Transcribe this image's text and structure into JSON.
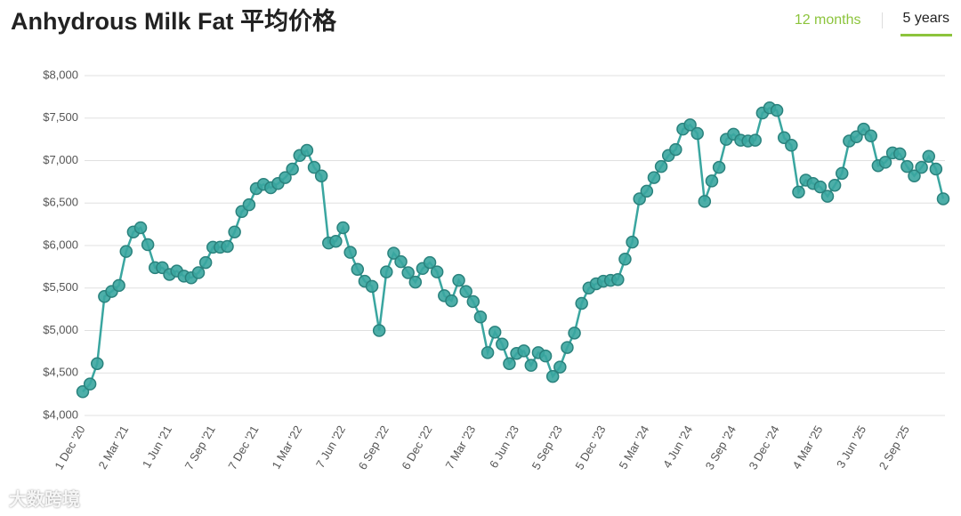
{
  "header": {
    "title": "Anhydrous Milk Fat 平均价格",
    "tabs": [
      "12 months",
      "5 years"
    ]
  },
  "watermark": "大数跨境",
  "chart_data": {
    "type": "line",
    "categories": [
      "1 Dec '20",
      null,
      null,
      null,
      null,
      null,
      "2 Mar '21",
      null,
      null,
      null,
      null,
      null,
      "1 Jun '21",
      null,
      null,
      null,
      null,
      null,
      "7 Sep '21",
      null,
      null,
      null,
      null,
      null,
      "7 Dec '21",
      null,
      null,
      null,
      null,
      null,
      "1 Mar '22",
      null,
      null,
      null,
      null,
      null,
      "7 Jun '22",
      null,
      null,
      null,
      null,
      null,
      "6 Sep '22",
      null,
      null,
      null,
      null,
      null,
      "6 Dec '22",
      null,
      null,
      null,
      null,
      null,
      "7 Mar '23",
      null,
      null,
      null,
      null,
      null,
      "6 Jun '23",
      null,
      null,
      null,
      null,
      null,
      "5 Sep '23",
      null,
      null,
      null,
      null,
      null,
      "5 Dec '23",
      null,
      null,
      null,
      null,
      null,
      "5 Mar '24",
      null,
      null,
      null,
      null,
      null,
      "4 Jun '24",
      null,
      null,
      null,
      null,
      null,
      "3 Sep '24",
      null,
      null,
      null,
      null,
      null,
      "3 Dec '24",
      null,
      null,
      null,
      null,
      null,
      "4 Mar '25",
      null,
      null,
      null,
      null,
      null,
      "3 Jun '25",
      null,
      null,
      null,
      null,
      null,
      "2 Sep '25",
      null,
      null,
      null,
      null,
      null
    ],
    "series": [
      {
        "name": "Anhydrous Milk Fat",
        "color": "#3aa6a0",
        "values": [
          4280,
          4370,
          4610,
          5400,
          5460,
          5530,
          5930,
          6160,
          6210,
          6010,
          5740,
          5740,
          5660,
          5700,
          5640,
          5620,
          5680,
          5800,
          5980,
          5980,
          5990,
          6160,
          6400,
          6480,
          6670,
          6720,
          6680,
          6730,
          6800,
          6900,
          7060,
          7120,
          6920,
          6820,
          6030,
          6050,
          6210,
          5920,
          5720,
          5580,
          5520,
          5000,
          5690,
          5910,
          5810,
          5680,
          5570,
          5730,
          5800,
          5690,
          5410,
          5350,
          5590,
          5460,
          5340,
          5160,
          4740,
          4980,
          4840,
          4610,
          4730,
          4760,
          4590,
          4740,
          4700,
          4460,
          4570,
          4800,
          4970,
          5320,
          5500,
          5550,
          5580,
          5590,
          5600,
          5840,
          6040,
          6550,
          6640,
          6800,
          6930,
          7060,
          7130,
          7370,
          7420,
          7320,
          6520,
          6760,
          6920,
          7250,
          7310,
          7240,
          7230,
          7240,
          7560,
          7620,
          7590,
          7270,
          7180,
          6630,
          6770,
          6730,
          6690,
          6580,
          6710,
          6850,
          7230,
          7280,
          7370,
          7290,
          6940,
          6980,
          7090,
          7080,
          6930,
          6820,
          6920,
          7050,
          6900,
          6550
        ]
      }
    ],
    "ylim": [
      4000,
      8000
    ],
    "yticks": [
      {
        "value": 4000,
        "label": "$4,000"
      },
      {
        "value": 4500,
        "label": "$4,500"
      },
      {
        "value": 5000,
        "label": "$5,000"
      },
      {
        "value": 5500,
        "label": "$5,500"
      },
      {
        "value": 6000,
        "label": "$6,000"
      },
      {
        "value": 6500,
        "label": "$6,500"
      },
      {
        "value": 7000,
        "label": "$7,000"
      },
      {
        "value": 7500,
        "label": "$7,500"
      },
      {
        "value": 8000,
        "label": "$8,000"
      }
    ],
    "grid": true
  }
}
